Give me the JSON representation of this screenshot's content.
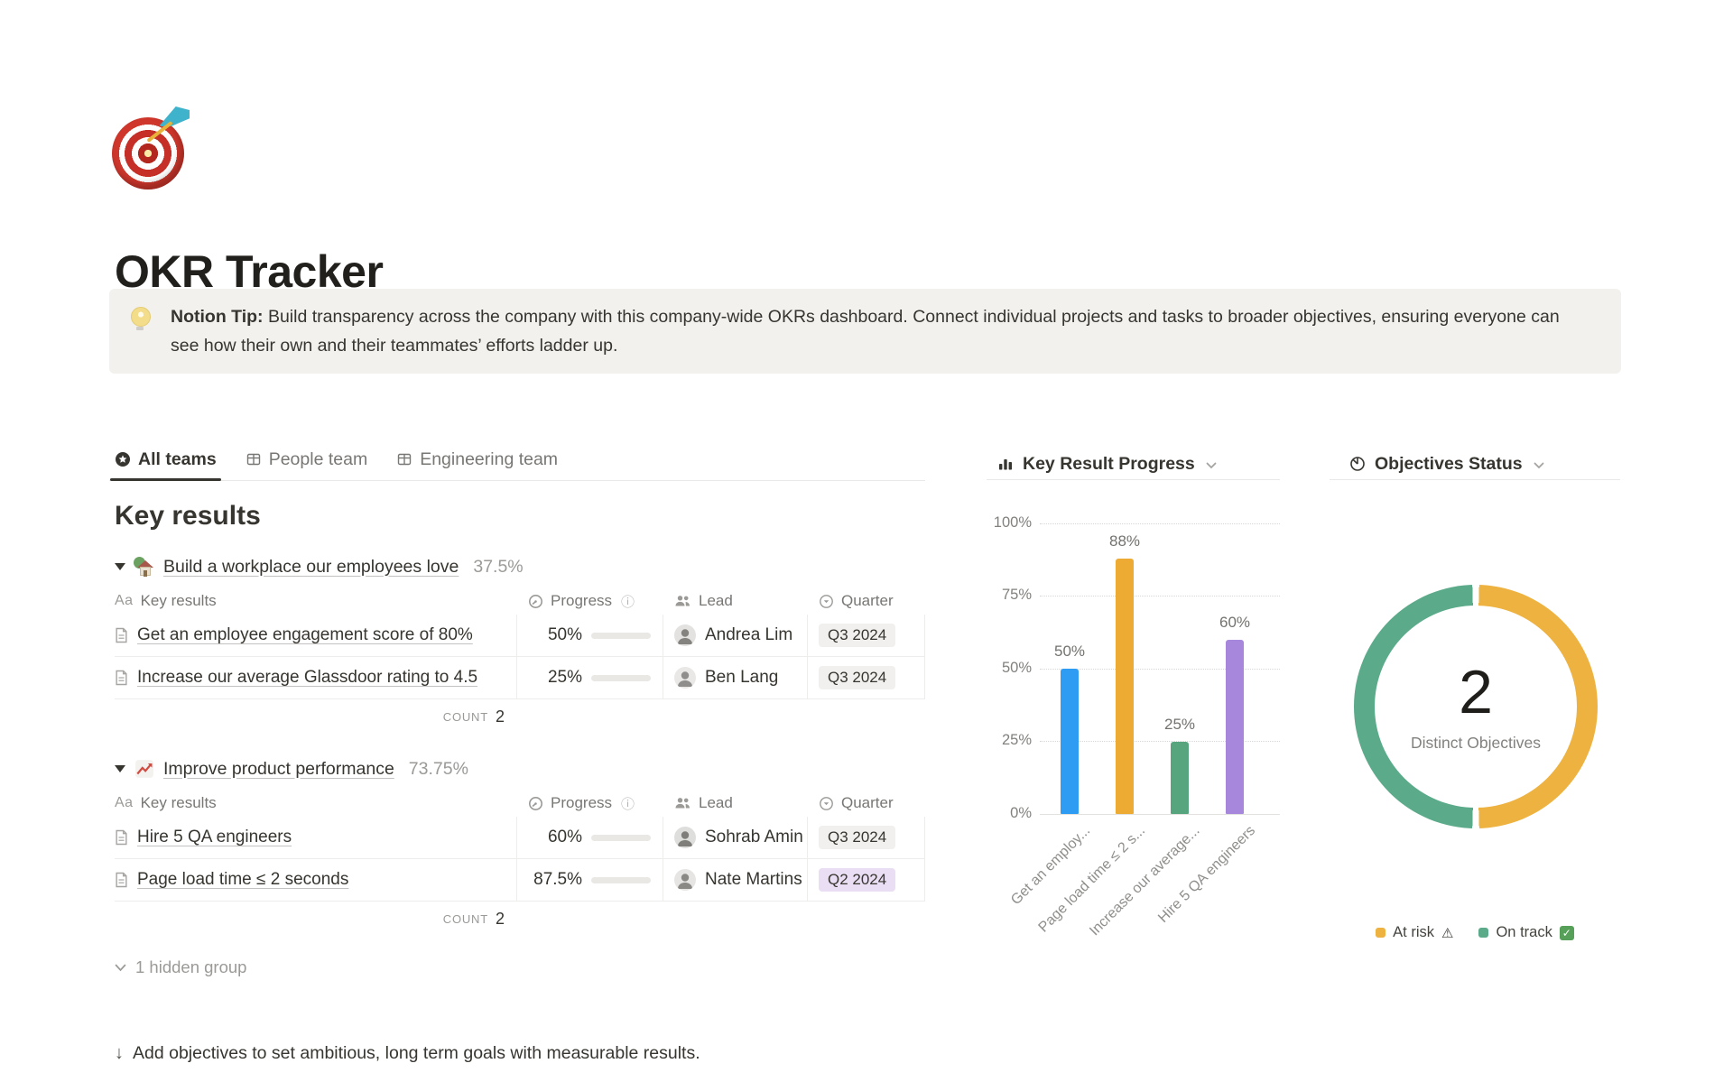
{
  "page": {
    "icon_name": "target-emoji",
    "title": "OKR Tracker"
  },
  "callout": {
    "icon_name": "bulb-emoji",
    "lead": "Notion Tip:",
    "text": " Build transparency across the company with this company-wide OKRs dashboard. Connect individual projects and tasks to broader objectives, ensuring everyone can see how their own and their teammates’ efforts ladder up."
  },
  "tabs": [
    {
      "label": "All teams",
      "active": true
    },
    {
      "label": "People team",
      "active": false
    },
    {
      "label": "Engineering team",
      "active": false
    }
  ],
  "section_title": "Key results",
  "table_columns": {
    "name_icon": "Aa",
    "name": "Key results",
    "progress": "Progress",
    "info_icon": "ⓘ",
    "lead": "Lead",
    "quarter": "Quarter"
  },
  "groups": [
    {
      "icon_name": "house-emoji",
      "title": "Build a workplace our employees love",
      "percent": "37.5%",
      "rows": [
        {
          "name": "Get an employee engagement score of 80%",
          "progress_label": "50%",
          "progress_value": 50,
          "lead": "Andrea Lim",
          "quarter": "Q3 2024",
          "quarter_color": "gray"
        },
        {
          "name": "Increase our average Glassdoor rating to 4.5",
          "progress_label": "25%",
          "progress_value": 25,
          "lead": "Ben Lang",
          "quarter": "Q3 2024",
          "quarter_color": "gray"
        }
      ],
      "count_label": "COUNT",
      "count_value": "2"
    },
    {
      "icon_name": "chart-up-emoji",
      "title": "Improve product performance",
      "percent": "73.75%",
      "rows": [
        {
          "name": "Hire 5 QA engineers",
          "progress_label": "60%",
          "progress_value": 60,
          "lead": "Sohrab Amin",
          "quarter": "Q3 2024",
          "quarter_color": "gray"
        },
        {
          "name": "Page load time ≤ 2 seconds",
          "progress_label": "87.5%",
          "progress_value": 87.5,
          "lead": "Nate Martins",
          "quarter": "Q2 2024",
          "quarter_color": "purple"
        }
      ],
      "count_label": "COUNT",
      "count_value": "2"
    }
  ],
  "hidden_group_label": "1 hidden group",
  "footer": {
    "arrow": "↓",
    "text": "Add objectives to set ambitious, long term goals with measurable results."
  },
  "colors": {
    "progress_fill": "#6f9b87",
    "badge_gray": "#f1f0ee",
    "badge_purple": "#e9def3",
    "divider": "#e9e9e7",
    "text": "#37352f",
    "muted": "#787774",
    "faint": "#9b9a97"
  },
  "chart_data": [
    {
      "type": "bar",
      "title": "Key Result Progress",
      "categories": [
        "Get an employ...",
        "Page load time ≤ 2 s...",
        "Increase our average...",
        "Hire 5 QA engineers"
      ],
      "values": [
        50,
        88,
        25,
        60
      ],
      "value_labels": [
        "50%",
        "88%",
        "25%",
        "60%"
      ],
      "colors": [
        "#2f9cf4",
        "#eeab33",
        "#56a57f",
        "#a687dc"
      ],
      "yticks": [
        "100%",
        "75%",
        "50%",
        "25%",
        "0%"
      ],
      "ylim": [
        0,
        100
      ],
      "grid": "dotted-horizontal",
      "legend": "none"
    },
    {
      "type": "pie",
      "title": "Objectives Status",
      "donut": true,
      "center_value": "2",
      "center_label": "Distinct Objectives",
      "slices": [
        {
          "label": "At risk",
          "icon_glyph": "⚠",
          "value": 1,
          "color": "#edb23f"
        },
        {
          "label": "On track",
          "icon_glyph": "✓",
          "value": 1,
          "color": "#5bab8b"
        }
      ],
      "legend_position": "bottom"
    }
  ]
}
